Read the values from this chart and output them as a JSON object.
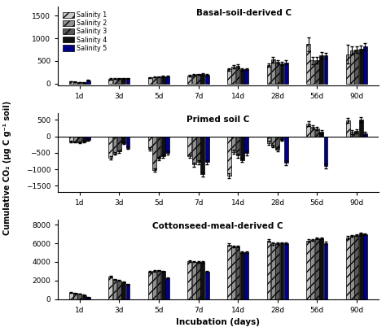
{
  "time_points": [
    "1d",
    "3d",
    "5d",
    "7d",
    "14d",
    "28d",
    "56d",
    "90d"
  ],
  "panel_titles": [
    "Basal-soil-derived C",
    "Primed soil C",
    "Cottonseed-meal-derived C"
  ],
  "legend_labels": [
    "Salinity 1",
    "Salinity 2",
    "Salinity 3",
    "Salinity 4",
    "Salinity 5"
  ],
  "bar_colors": [
    "#c8c8c8",
    "#909090",
    "#585858",
    "#101010",
    "#00008B"
  ],
  "bar_hatches": [
    "///",
    "///",
    "///",
    "",
    ""
  ],
  "ylabel": "Cumulative CO₂ (μg C g⁻¹ soil)",
  "xlabel": "Incubation (days)",
  "basal": {
    "means": [
      [
        45,
        35,
        30,
        20,
        70
      ],
      [
        100,
        105,
        110,
        110,
        110
      ],
      [
        130,
        140,
        150,
        155,
        155
      ],
      [
        175,
        190,
        200,
        205,
        195
      ],
      [
        310,
        370,
        390,
        310,
        320
      ],
      [
        410,
        530,
        480,
        440,
        470
      ],
      [
        870,
        510,
        510,
        620,
        615
      ],
      [
        650,
        730,
        750,
        760,
        820
      ]
    ],
    "errors": [
      [
        5,
        5,
        5,
        5,
        5
      ],
      [
        10,
        10,
        10,
        10,
        10
      ],
      [
        10,
        10,
        10,
        10,
        10
      ],
      [
        15,
        15,
        15,
        15,
        15
      ],
      [
        30,
        40,
        30,
        20,
        20
      ],
      [
        30,
        60,
        40,
        40,
        40
      ],
      [
        150,
        80,
        70,
        70,
        60
      ],
      [
        200,
        90,
        80,
        80,
        80
      ]
    ],
    "ylim": [
      -50,
      1700
    ],
    "yticks": [
      0,
      500,
      1000,
      1500
    ]
  },
  "primed": {
    "means": [
      [
        -150,
        -170,
        -180,
        -160,
        -100
      ],
      [
        -650,
        -520,
        -460,
        -200,
        -350
      ],
      [
        -380,
        -1020,
        -680,
        -600,
        -500
      ],
      [
        -600,
        -850,
        -780,
        -1140,
        -780
      ],
      [
        -1200,
        -470,
        -580,
        -720,
        -510
      ],
      [
        -200,
        -300,
        -400,
        -100,
        -800
      ],
      [
        390,
        290,
        240,
        130,
        -900
      ],
      [
        490,
        130,
        160,
        510,
        90
      ]
    ],
    "errors": [
      [
        20,
        20,
        20,
        20,
        20
      ],
      [
        50,
        40,
        40,
        30,
        40
      ],
      [
        50,
        50,
        50,
        50,
        50
      ],
      [
        60,
        60,
        60,
        70,
        60
      ],
      [
        80,
        60,
        60,
        60,
        60
      ],
      [
        60,
        40,
        60,
        30,
        80
      ],
      [
        70,
        60,
        50,
        60,
        80
      ],
      [
        80,
        60,
        60,
        80,
        60
      ]
    ],
    "ylim": [
      -1700,
      700
    ],
    "yticks": [
      -1500,
      -1000,
      -500,
      0,
      500
    ]
  },
  "cottonseed": {
    "means": [
      [
        700,
        640,
        580,
        430,
        200
      ],
      [
        2380,
        2130,
        1990,
        1820,
        1600
      ],
      [
        2930,
        3020,
        3070,
        3000,
        2280
      ],
      [
        4050,
        4030,
        4010,
        3970,
        2970
      ],
      [
        5870,
        5680,
        5620,
        5020,
        5010
      ],
      [
        6280,
        5960,
        5980,
        6040,
        6020
      ],
      [
        6300,
        6360,
        6500,
        6540,
        6040
      ],
      [
        6600,
        6780,
        6860,
        7010,
        6940
      ]
    ],
    "errors": [
      [
        30,
        30,
        20,
        20,
        20
      ],
      [
        80,
        60,
        50,
        50,
        50
      ],
      [
        80,
        70,
        60,
        50,
        50
      ],
      [
        100,
        80,
        80,
        70,
        70
      ],
      [
        120,
        100,
        80,
        70,
        80
      ],
      [
        120,
        100,
        80,
        80,
        80
      ],
      [
        130,
        100,
        100,
        100,
        100
      ],
      [
        150,
        120,
        100,
        100,
        100
      ]
    ],
    "ylim": [
      0,
      8500
    ],
    "yticks": [
      0,
      2000,
      4000,
      6000,
      8000
    ]
  },
  "bar_width": 0.11,
  "figsize": [
    4.74,
    4.13
  ],
  "dpi": 100,
  "background_color": "#ffffff"
}
